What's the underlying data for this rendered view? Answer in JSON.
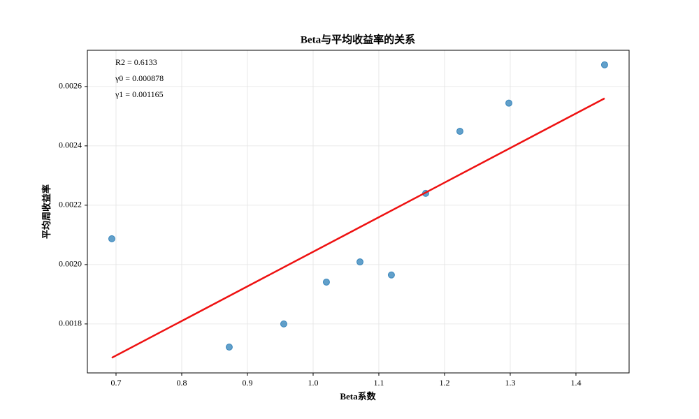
{
  "chart_data": {
    "type": "scatter",
    "title": "Beta与平均收益率的关系",
    "xlabel": "Beta系数",
    "ylabel": "平均周收益率",
    "annotations": [
      "R2 = 0.6133",
      "γ0 = 0.000878",
      "γ1 = 0.001165"
    ],
    "x": [
      0.6936,
      0.8723,
      0.9553,
      1.0202,
      1.0713,
      1.1191,
      1.1713,
      1.2234,
      1.2979,
      1.4436
    ],
    "values": [
      0.002087,
      0.001722,
      0.0018,
      0.001941,
      0.002009,
      0.001965,
      0.00224,
      0.002449,
      0.002544,
      0.002673
    ],
    "color": "#1f77b4",
    "fit_line": {
      "x": [
        0.6936,
        1.4436
      ],
      "values": [
        0.001686,
        0.00256
      ],
      "color": "#ee1111"
    },
    "xlim": [
      0.6564,
      1.4809
    ],
    "ylim": [
      0.001635,
      0.002722
    ],
    "xticks": [
      0.7,
      0.8,
      0.9,
      {
        "value": 1,
        "label": "1.0"
      },
      1.1,
      1.2,
      1.3,
      1.4
    ],
    "yticks": [
      0.0018,
      {
        "value": 0.002,
        "label": "0.0020"
      },
      0.0022,
      0.0024,
      0.0026
    ],
    "grid": true
  }
}
